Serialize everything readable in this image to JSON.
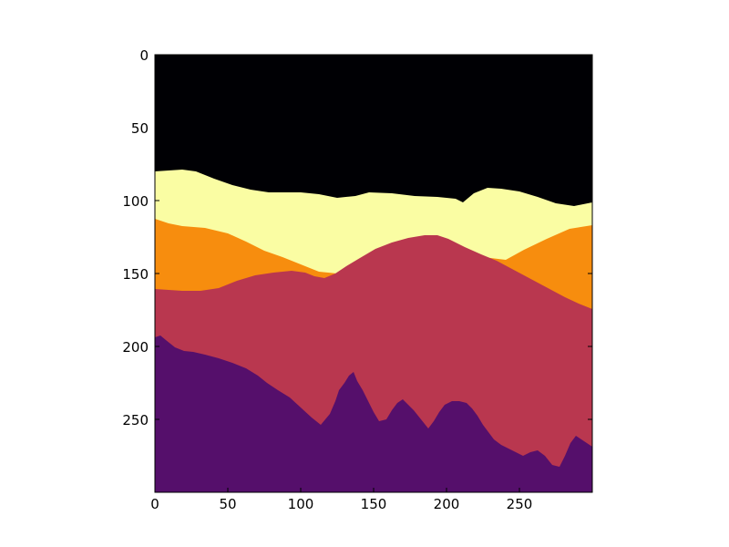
{
  "image": {
    "description_kind": "segmentation mask rendered with inferno colormap",
    "grid_size": [
      300,
      300
    ],
    "colormap": "inferno",
    "region_colors": {
      "sky": "#000004",
      "far-hills": "#fafda3",
      "mid-hills": "#f78d0e",
      "near-mountain": "#b9374f",
      "foreground-forest": "#550f6b"
    }
  },
  "axes": {
    "x_ticks": [
      "0",
      "50",
      "100",
      "150",
      "200",
      "250"
    ],
    "y_ticks": [
      "0",
      "50",
      "100",
      "150",
      "200",
      "250"
    ],
    "xlim": [
      0,
      300
    ],
    "ylim": [
      300,
      0
    ]
  }
}
